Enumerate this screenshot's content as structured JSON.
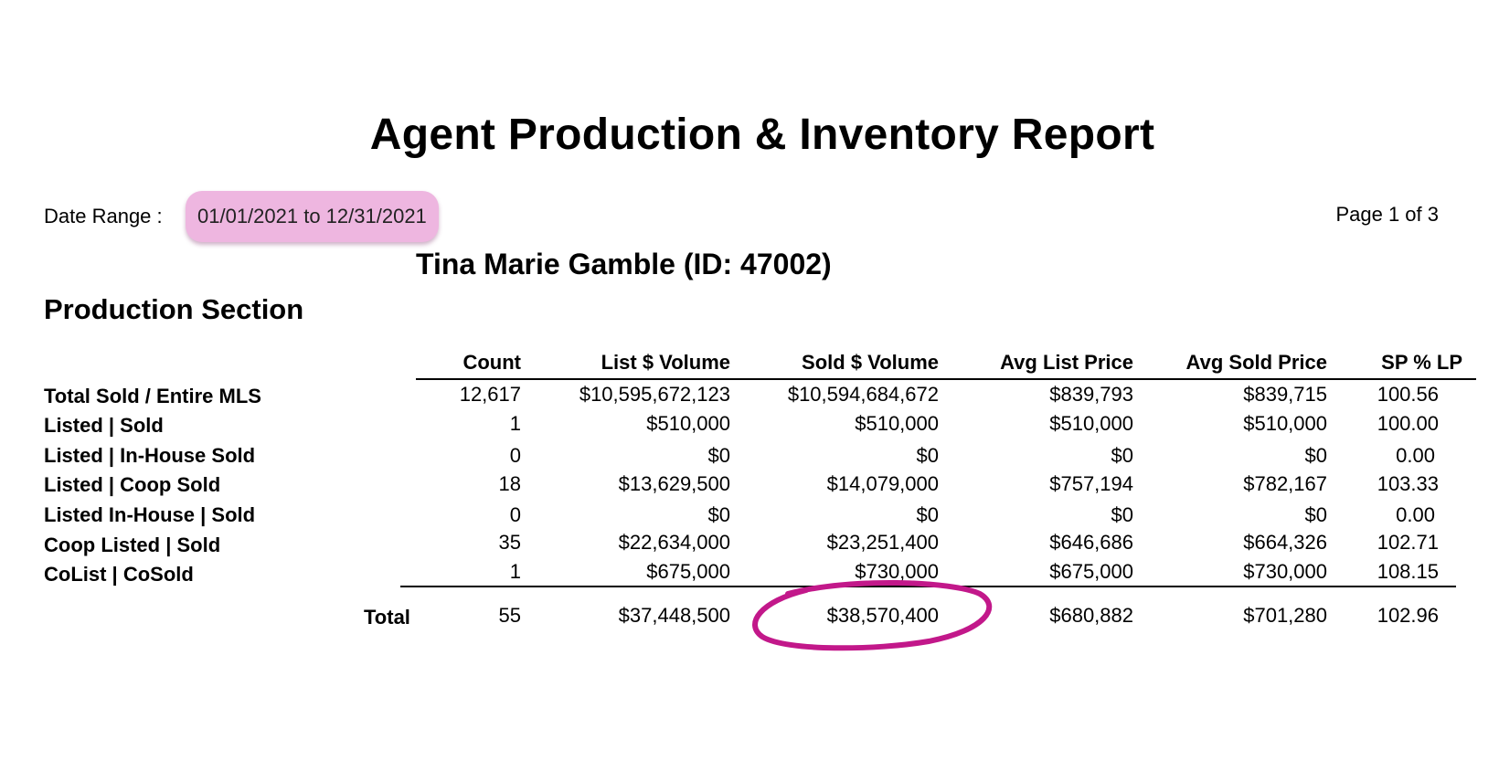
{
  "report": {
    "title": "Agent Production & Inventory Report",
    "date_range_label": "Date Range :",
    "date_range_value": "01/01/2021 to 12/31/2021",
    "page_indicator": "Page 1 of 3",
    "agent_name": "Tina Marie Gamble (ID: 47002)",
    "section_title": "Production Section"
  },
  "table": {
    "columns": [
      "Count",
      "List $ Volume",
      "Sold $ Volume",
      "Avg List Price",
      "Avg Sold Price",
      "SP % LP"
    ],
    "rows": [
      {
        "label": "Total Sold / Entire MLS",
        "values": [
          "12,617",
          "$10,595,672,123",
          "$10,594,684,672",
          "$839,793",
          "$839,715",
          "100.56"
        ]
      },
      {
        "label": "Listed | Sold",
        "values": [
          "1",
          "$510,000",
          "$510,000",
          "$510,000",
          "$510,000",
          "100.00"
        ]
      },
      {
        "label": "Listed | In-House Sold",
        "values": [
          "0",
          "$0",
          "$0",
          "$0",
          "$0",
          "0.00"
        ]
      },
      {
        "label": "Listed | Coop Sold",
        "values": [
          "18",
          "$13,629,500",
          "$14,079,000",
          "$757,194",
          "$782,167",
          "103.33"
        ]
      },
      {
        "label": "Listed In-House | Sold",
        "values": [
          "0",
          "$0",
          "$0",
          "$0",
          "$0",
          "0.00"
        ]
      },
      {
        "label": "Coop Listed | Sold",
        "values": [
          "35",
          "$22,634,000",
          "$23,251,400",
          "$646,686",
          "$664,326",
          "102.71"
        ]
      },
      {
        "label": "CoList | CoSold",
        "values": [
          "1",
          "$675,000",
          "$730,000",
          "$675,000",
          "$730,000",
          "108.15"
        ]
      }
    ],
    "total": {
      "label": "Total",
      "values": [
        "55",
        "$37,448,500",
        "$38,570,400",
        "$680,882",
        "$701,280",
        "102.96"
      ]
    }
  },
  "annotations": {
    "highlight_color": "#eeb6e0",
    "circle_color": "#c2188a",
    "circled_value": "$38,570,400"
  }
}
